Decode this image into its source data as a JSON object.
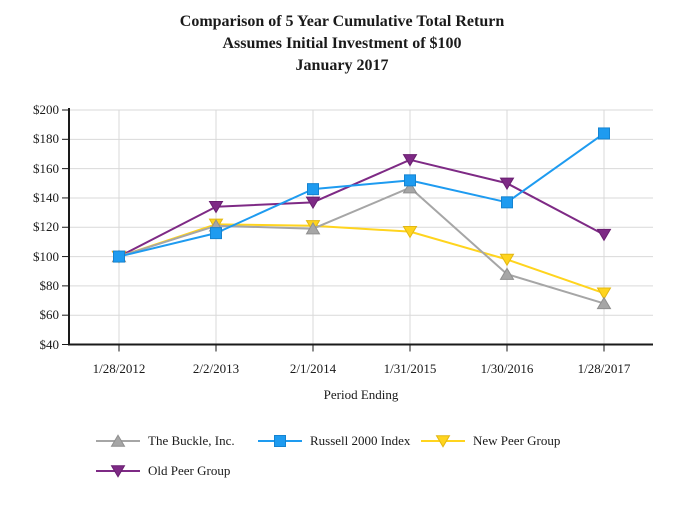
{
  "title": {
    "lines": [
      "Comparison of 5 Year Cumulative Total Return",
      "Assumes Initial Investment of $100",
      "January 2017"
    ]
  },
  "chart_data": {
    "type": "line",
    "title": "Comparison of 5 Year Cumulative Total Return — Assumes Initial Investment of $100 — January 2017",
    "xlabel": "Period Ending",
    "ylabel": "",
    "categories": [
      "1/28/2012",
      "2/2/2013",
      "2/1/2014",
      "1/31/2015",
      "1/30/2016",
      "1/28/2017"
    ],
    "series": [
      {
        "name": "The Buckle, Inc.",
        "marker": "triangle-up",
        "color": "#A6A6A6",
        "edge": "#8F8F8F",
        "values": [
          100,
          121,
          119,
          147,
          88,
          68
        ]
      },
      {
        "name": "Russell 2000 Index",
        "marker": "square",
        "color": "#1E9BF0",
        "edge": "#1583D0",
        "values": [
          100,
          116,
          146,
          152,
          137,
          184
        ]
      },
      {
        "name": "New Peer Group",
        "marker": "triangle-down",
        "color": "#FFD41E",
        "edge": "#E2B713",
        "values": [
          100,
          122,
          121,
          117,
          98,
          75
        ]
      },
      {
        "name": "Old Peer Group",
        "marker": "triangle-down",
        "color": "#7E2A85",
        "edge": "#691F70",
        "values": [
          100,
          134,
          137,
          166,
          150,
          115
        ]
      }
    ],
    "ylim": [
      40,
      200
    ],
    "ytick_step": 20,
    "ytick_labels": [
      "$40",
      "$60",
      "$80",
      "$100",
      "$120",
      "$140",
      "$160",
      "$180",
      "$200"
    ],
    "grid": true,
    "grid_color": "#D9D9D9",
    "axis_color": "#1a1a1a",
    "legend_position": "bottom"
  }
}
